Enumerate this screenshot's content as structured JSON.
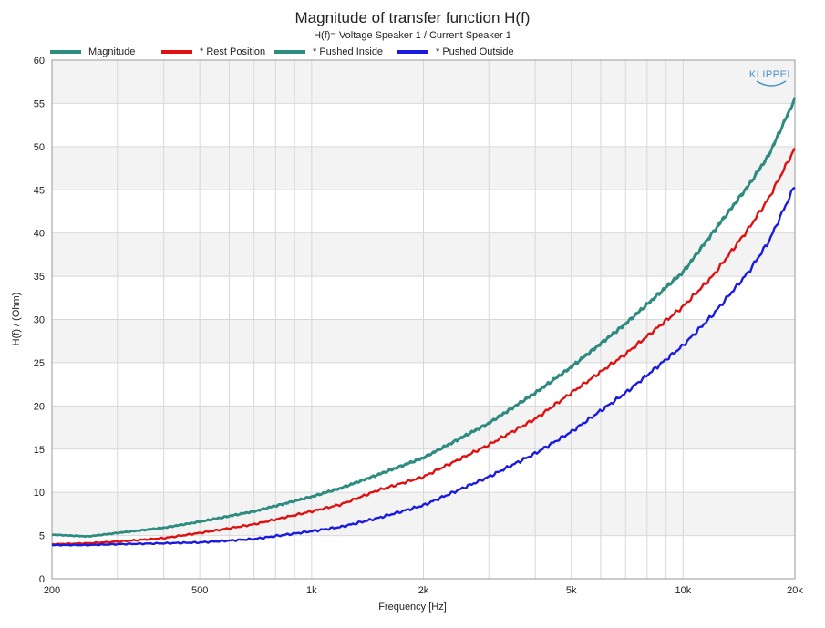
{
  "chart_data": {
    "type": "line",
    "title": "Magnitude of transfer function H(f)",
    "subtitle": "H(f)= Voltage Speaker 1 / Current Speaker 1",
    "xlabel": "Frequency [Hz]",
    "ylabel": "H(f) / (Ohm)",
    "xscale": "log",
    "xlim": [
      200,
      20000
    ],
    "ylim": [
      0,
      60
    ],
    "grid": true,
    "legend_position": "top-left",
    "x_ticks": [
      {
        "value": 200,
        "label": "200"
      },
      {
        "value": 500,
        "label": "500"
      },
      {
        "value": 1000,
        "label": "1k"
      },
      {
        "value": 2000,
        "label": "2k"
      },
      {
        "value": 5000,
        "label": "5k"
      },
      {
        "value": 10000,
        "label": "10k"
      },
      {
        "value": 20000,
        "label": "20k"
      }
    ],
    "y_ticks": [
      0,
      5,
      10,
      15,
      20,
      25,
      30,
      35,
      40,
      45,
      50,
      55,
      60
    ],
    "x": [
      200,
      250,
      300,
      400,
      500,
      700,
      1000,
      1200,
      1500,
      2000,
      3000,
      4000,
      5000,
      7000,
      10000,
      12000,
      15000,
      17000,
      20000
    ],
    "series": [
      {
        "name": "Magnitude",
        "color": "#2e8b80",
        "values": [
          5.1,
          4.9,
          5.3,
          5.9,
          6.6,
          7.8,
          9.5,
          10.5,
          12.0,
          14.0,
          18.0,
          21.5,
          24.5,
          29.5,
          35.5,
          40.0,
          45.5,
          49.0,
          55.5
        ]
      },
      {
        "name": "* Rest Position",
        "color": "#e01010",
        "values": [
          4.0,
          4.1,
          4.3,
          4.7,
          5.3,
          6.3,
          7.8,
          8.6,
          10.2,
          11.8,
          15.5,
          18.5,
          21.5,
          26.0,
          31.5,
          35.0,
          40.5,
          44.0,
          49.8
        ]
      },
      {
        "name": "* Pushed Inside",
        "color": "#2e8b80",
        "values": [
          5.1,
          4.9,
          5.3,
          5.9,
          6.6,
          7.8,
          9.5,
          10.5,
          12.0,
          14.0,
          18.0,
          21.5,
          24.5,
          29.5,
          35.5,
          40.0,
          45.5,
          49.0,
          55.5
        ]
      },
      {
        "name": "* Pushed Outside",
        "color": "#1a1ae0",
        "values": [
          3.9,
          3.9,
          4.0,
          4.1,
          4.2,
          4.6,
          5.5,
          6.0,
          7.0,
          8.5,
          11.8,
          14.5,
          17.0,
          21.5,
          27.0,
          30.5,
          35.5,
          39.0,
          45.5
        ]
      }
    ]
  },
  "logo": {
    "text": "KLIPPEL"
  }
}
